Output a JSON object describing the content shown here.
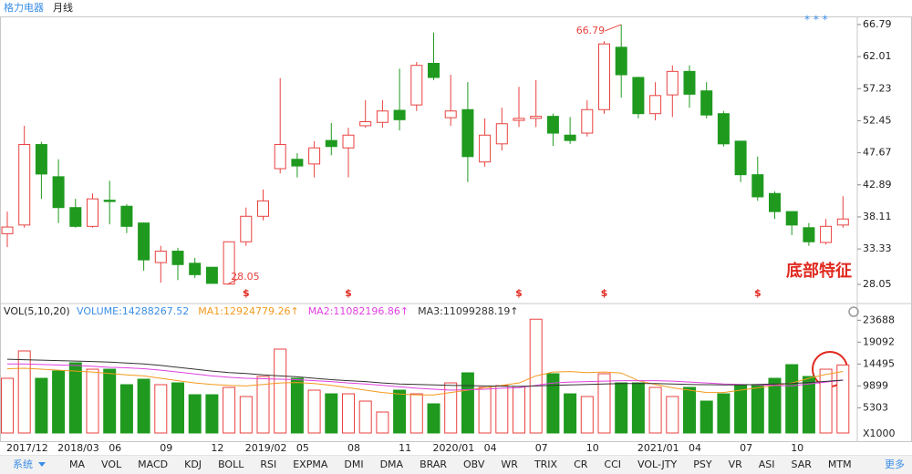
{
  "header": {
    "stock": "格力电器",
    "period": "月线",
    "stars": "*  *  *"
  },
  "chart_data": [
    {
      "type": "candlestick",
      "categories": [
        "2017/12",
        null,
        null,
        "2018/03",
        null,
        null,
        "06",
        null,
        null,
        "09",
        null,
        null,
        "12",
        null,
        "2019/02",
        null,
        null,
        "05",
        null,
        null,
        "08",
        null,
        null,
        "11",
        null,
        "2020/01",
        null,
        null,
        "04",
        null,
        null,
        "07",
        null,
        null,
        "10",
        null,
        null,
        "2021/01",
        null,
        null,
        "04",
        null,
        null,
        "07",
        null,
        null,
        "10",
        null,
        null,
        null
      ],
      "open": [
        35.6,
        36.9,
        48.9,
        44.1,
        39.5,
        36.7,
        40.6,
        39.7,
        37.2,
        31.3,
        33.0,
        31.2,
        30.6,
        28.1,
        34.4,
        38.2,
        45.3,
        46.7,
        46.0,
        49.5,
        48.4,
        51.7,
        52.2,
        54.0,
        54.8,
        61.0,
        52.9,
        54.1,
        46.3,
        49.0,
        52.5,
        52.8,
        53.1,
        50.3,
        50.6,
        54.1,
        63.4,
        58.9,
        53.5,
        56.3,
        59.8,
        56.9,
        53.5,
        49.4,
        44.4,
        41.6,
        38.9,
        36.5,
        34.3,
        36.9
      ],
      "high": [
        38.9,
        51.7,
        49.3,
        46.7,
        40.8,
        41.6,
        43.5,
        40.0,
        37.3,
        33.8,
        33.5,
        32.0,
        30.6,
        34.4,
        39.5,
        42.2,
        58.8,
        47.6,
        49.4,
        52.1,
        51.4,
        55.5,
        55.5,
        60.2,
        61.2,
        65.6,
        59.3,
        58.2,
        52.8,
        54.4,
        57.5,
        58.5,
        53.5,
        53.0,
        55.5,
        64.3,
        66.79,
        59.0,
        58.2,
        60.7,
        60.7,
        58.2,
        53.9,
        49.4,
        47.1,
        41.9,
        38.9,
        37.2,
        37.8,
        41.2
      ],
      "low": [
        33.6,
        36.5,
        40.8,
        37.2,
        36.5,
        36.5,
        37.0,
        35.7,
        30.1,
        28.3,
        28.7,
        29.0,
        28.2,
        28.05,
        33.8,
        37.6,
        44.6,
        44.0,
        44.0,
        47.3,
        44.0,
        51.4,
        51.4,
        51.0,
        53.9,
        58.5,
        51.7,
        43.3,
        45.6,
        48.0,
        51.5,
        51.5,
        48.7,
        49.0,
        50.1,
        53.5,
        55.9,
        52.8,
        52.5,
        53.0,
        54.4,
        52.8,
        48.6,
        43.3,
        40.5,
        37.8,
        35.4,
        33.8,
        34.0,
        36.5
      ],
      "close": [
        36.6,
        48.9,
        44.5,
        39.5,
        36.7,
        40.8,
        40.4,
        36.7,
        31.7,
        33.0,
        31.0,
        29.5,
        28.2,
        34.4,
        38.2,
        40.5,
        48.9,
        45.7,
        48.4,
        48.6,
        50.3,
        52.3,
        53.9,
        52.6,
        60.7,
        58.9,
        53.9,
        47.1,
        50.3,
        52.0,
        52.8,
        53.1,
        50.6,
        49.5,
        54.1,
        63.9,
        59.3,
        53.5,
        56.2,
        59.8,
        56.4,
        53.3,
        49.0,
        44.4,
        41.1,
        38.9,
        36.9,
        34.4,
        36.7,
        37.8
      ],
      "markers": [
        null,
        null,
        null,
        null,
        null,
        null,
        null,
        null,
        null,
        null,
        null,
        null,
        null,
        null,
        "$",
        null,
        null,
        null,
        null,
        null,
        "$",
        null,
        null,
        null,
        null,
        null,
        null,
        null,
        null,
        null,
        "$",
        null,
        null,
        null,
        null,
        "$",
        null,
        null,
        null,
        null,
        null,
        null,
        null,
        null,
        "$",
        null,
        null,
        null,
        null,
        null
      ],
      "up_color": "#e8423f",
      "down_color": "#1f9a1f",
      "ylim": [
        25.6,
        68.0
      ],
      "yticks": [
        66.79,
        62.01,
        57.23,
        52.45,
        47.67,
        42.89,
        38.11,
        33.33,
        28.05
      ],
      "annotations": {
        "high": 66.79,
        "low": 28.05,
        "note": "底部特征"
      }
    },
    {
      "type": "volume",
      "title": "VOL(5,10,20)",
      "unit": "X1000",
      "series": [
        {
          "name": "VOLUME:14288267.52",
          "color": "#3a8ee6",
          "values": [
            11490,
            17240,
            11490,
            13020,
            14750,
            13400,
            13400,
            10150,
            11300,
            10150,
            10530,
            8040,
            8040,
            9580,
            7660,
            11870,
            17620,
            11490,
            9000,
            8230,
            8230,
            6700,
            4400,
            9000,
            8230,
            6130,
            10530,
            12640,
            9580,
            9960,
            9770,
            23900,
            12450,
            8230,
            7660,
            12450,
            10530,
            10530,
            9580,
            7660,
            9580,
            6700,
            8230,
            10150,
            10150,
            11490,
            14360,
            11870,
            13400,
            14288.27
          ]
        },
        {
          "name": "MA1:12924779.26↑",
          "color": "#f39a1e",
          "values": [
            13500,
            13600,
            13400,
            13200,
            13000,
            12800,
            12500,
            12200,
            12000,
            11500,
            11000,
            10500,
            10200,
            10000,
            9900,
            10200,
            10500,
            10600,
            10400,
            10000,
            9500,
            9000,
            8500,
            8200,
            8000,
            8000,
            8500,
            9000,
            9500,
            10000,
            10500,
            12000,
            12800,
            12900,
            12700,
            12800,
            12600,
            11000,
            10200,
            9500,
            9000,
            8500,
            8500,
            9000,
            9500,
            10000,
            10500,
            11500,
            12300,
            12924.78
          ]
        },
        {
          "name": "MA2:11082196.86↑",
          "color": "#e040e0",
          "values": [
            14500,
            14500,
            14400,
            14300,
            14200,
            14000,
            13800,
            13700,
            13500,
            13200,
            12800,
            12400,
            12000,
            11700,
            11500,
            11400,
            11300,
            11200,
            11000,
            10800,
            10500,
            10300,
            10000,
            9700,
            9400,
            9200,
            9000,
            9100,
            9200,
            9400,
            9500,
            10000,
            10500,
            10700,
            10800,
            10900,
            11000,
            11000,
            11000,
            10900,
            10700,
            10500,
            10300,
            10200,
            10100,
            10000,
            9900,
            10300,
            10700,
            11082.2
          ]
        },
        {
          "name": "MA3:11099288.19↑",
          "color": "#333333",
          "values": [
            15500,
            15400,
            15300,
            15200,
            15100,
            15000,
            14900,
            14700,
            14500,
            14200,
            13800,
            13400,
            13000,
            12700,
            12500,
            12200,
            12000,
            11800,
            11500,
            11200,
            11000,
            10800,
            10500,
            10300,
            10200,
            10100,
            10000,
            9950,
            9900,
            9850,
            9800,
            9900,
            10000,
            10100,
            10200,
            10300,
            10400,
            10400,
            10400,
            10300,
            10200,
            10150,
            10100,
            10100,
            10200,
            10300,
            10400,
            10600,
            10850,
            11099.29
          ]
        }
      ],
      "ylim": [
        0,
        24900
      ],
      "yticks": [
        23688,
        19092,
        14495,
        9899,
        5303
      ]
    }
  ],
  "toolbar": {
    "system": "系统",
    "items": [
      "MA",
      "VOL",
      "MACD",
      "KDJ",
      "BOLL",
      "RSI",
      "EXPMA",
      "DMI",
      "DMA",
      "BRAR",
      "OBV",
      "WR",
      "TRIX",
      "CR",
      "CCI",
      "VOL-JTY",
      "PSY",
      "VR",
      "ASI",
      "SAR",
      "MTM"
    ],
    "more": "更多"
  }
}
